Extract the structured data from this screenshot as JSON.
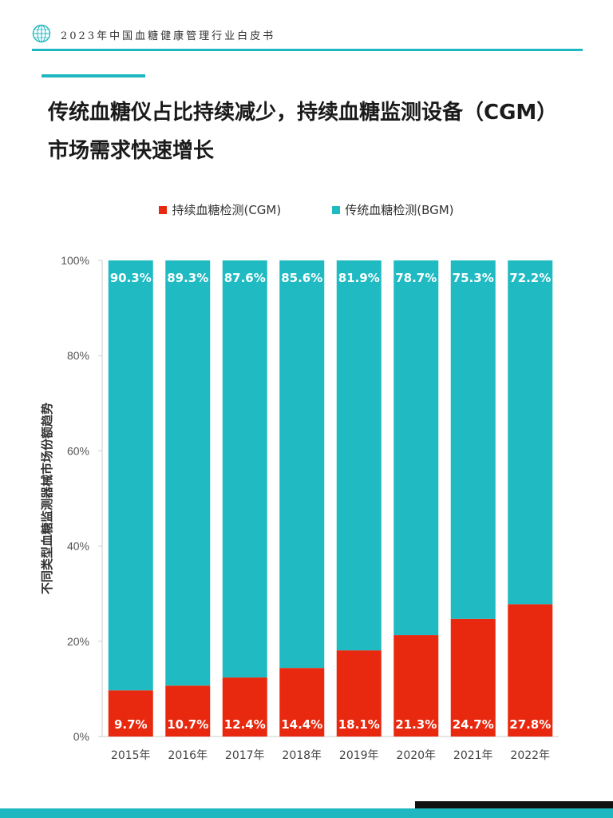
{
  "header": {
    "title": "2023年中国血糖健康管理行业白皮书"
  },
  "page": {
    "title_line1": "传统血糖仪占比持续减少，持续血糖监测设备（CGM）",
    "title_line2": "市场需求快速增长"
  },
  "colors": {
    "cgm": "#e8290f",
    "bgm": "#1fbac2",
    "accent": "#1fb8c0"
  },
  "chart_data": {
    "type": "bar",
    "stacked": true,
    "categories": [
      "2015年",
      "2016年",
      "2017年",
      "2018年",
      "2019年",
      "2020年",
      "2021年",
      "2022年"
    ],
    "series": [
      {
        "name": "持续血糖检测(CGM)",
        "values": [
          9.7,
          10.7,
          12.4,
          14.4,
          18.1,
          21.3,
          24.7,
          27.8
        ],
        "labels": [
          "9.7%",
          "10.7%",
          "12.4%",
          "14.4%",
          "18.1%",
          "21.3%",
          "24.7%",
          "27.8%"
        ]
      },
      {
        "name": "传统血糖检测(BGM)",
        "values": [
          90.3,
          89.3,
          87.6,
          85.6,
          81.9,
          78.7,
          75.3,
          72.2
        ],
        "labels": [
          "90.3%",
          "89.3%",
          "87.6%",
          "85.6%",
          "81.9%",
          "78.7%",
          "75.3%",
          "72.2%"
        ]
      }
    ],
    "ylabel": "不同类型血糖监测器械市场份额趋势",
    "ylim": [
      0,
      100
    ],
    "yticks": [
      "0%",
      "20%",
      "40%",
      "60%",
      "80%",
      "100%"
    ],
    "legend": "top-center",
    "grid": false
  }
}
